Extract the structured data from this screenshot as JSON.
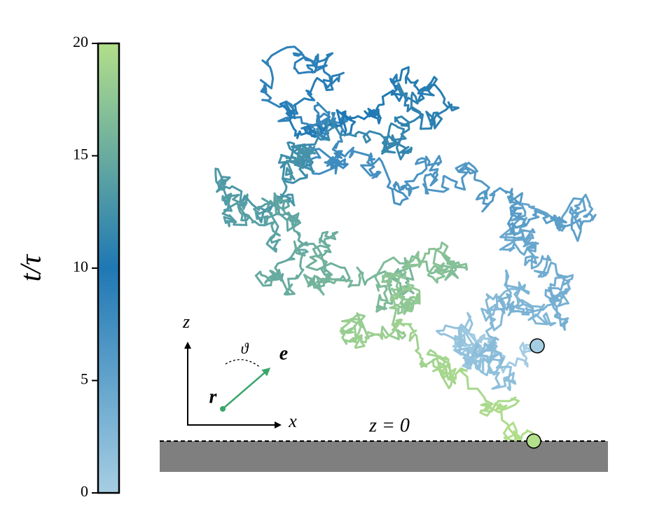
{
  "chart_data": {
    "type": "colorbar-trajectory",
    "colorbar": {
      "label": "t/τ",
      "lim": [
        0,
        20
      ],
      "ticks": [
        0,
        5,
        10,
        15,
        20
      ],
      "colors": [
        "#a6cee3",
        "#1f78b4",
        "#b2df8a"
      ]
    },
    "annotations": {
      "z_axis": "z",
      "x_axis": "x",
      "angle": "ϑ",
      "orientation": "e",
      "position": "r",
      "surface": "z = 0"
    }
  }
}
